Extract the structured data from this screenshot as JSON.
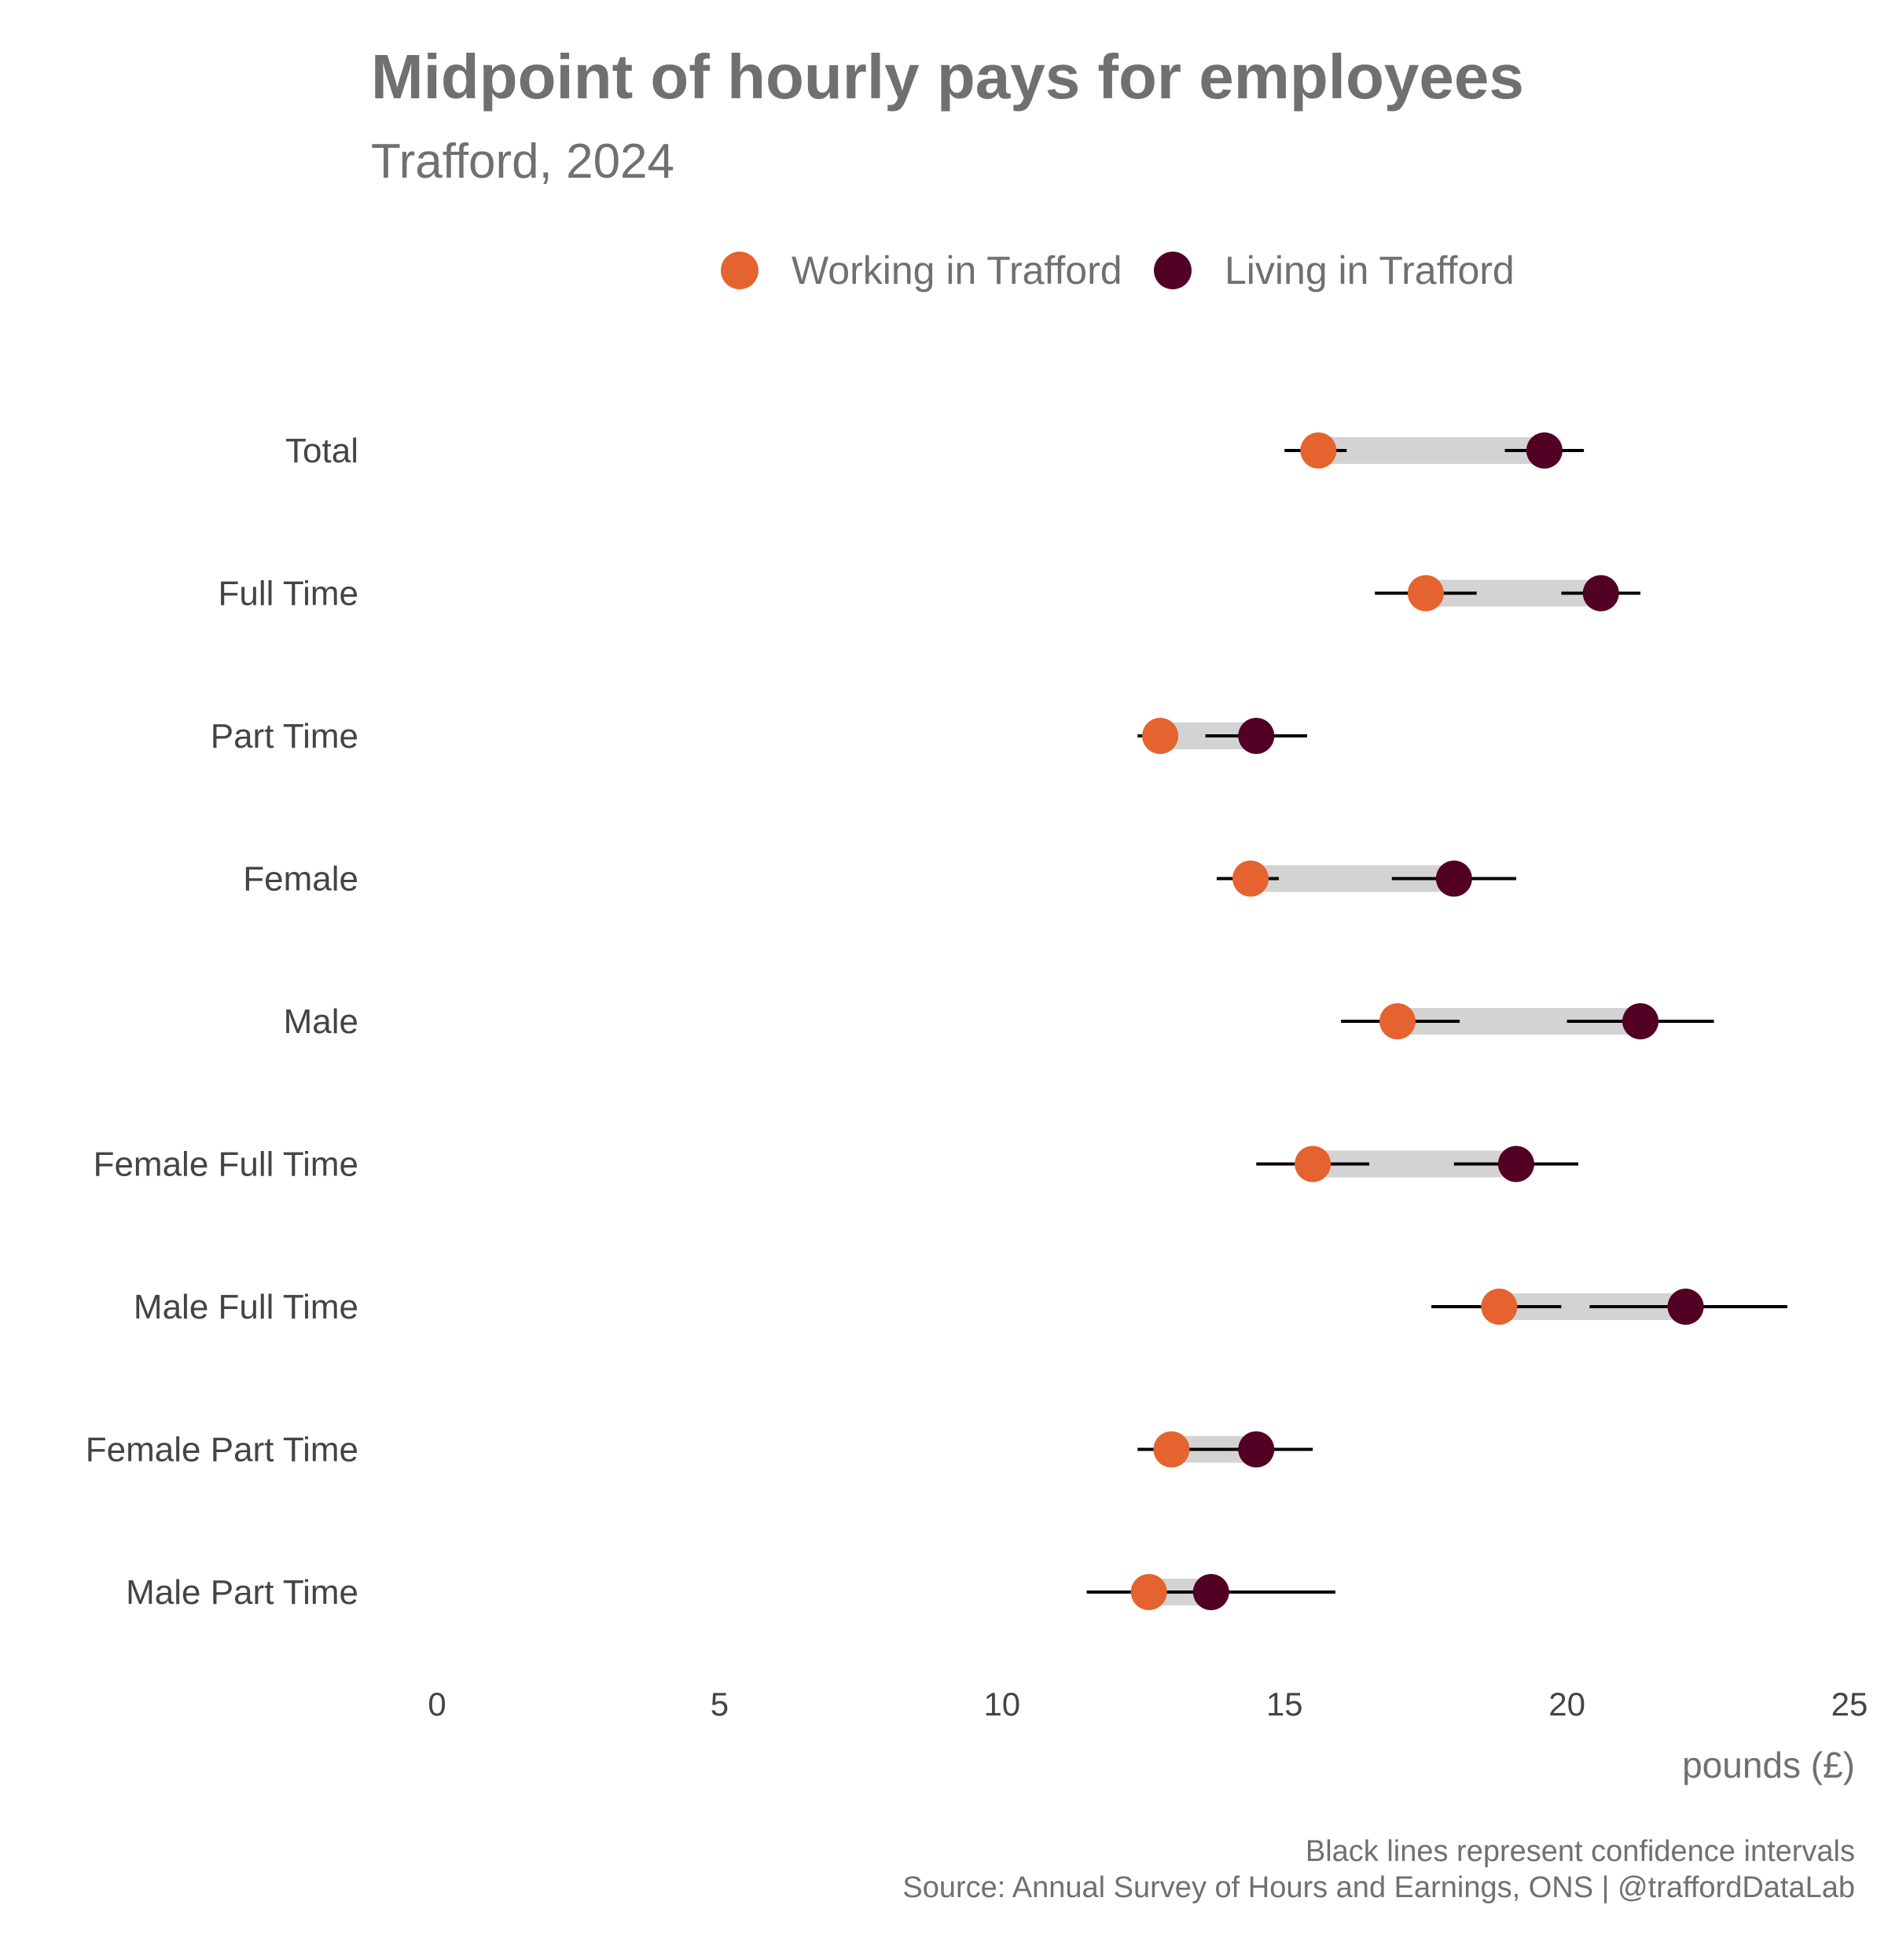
{
  "chart_data": {
    "type": "dumbbell",
    "title": "Midpoint of hourly pays for employees",
    "subtitle": "Trafford, 2024",
    "xlabel": "pounds (£)",
    "xlim": [
      0,
      25
    ],
    "x_ticks": [
      "0",
      "5",
      "10",
      "15",
      "20",
      "25"
    ],
    "legend_position": "top",
    "grid": false,
    "categories": [
      "Total",
      "Full Time",
      "Part Time",
      "Female",
      "Male",
      "Female Full Time",
      "Male Full Time",
      "Female Part Time",
      "Male Part Time"
    ],
    "series": [
      {
        "name": "Working in Trafford",
        "color": "#E4632E",
        "values": [
          15.6,
          17.5,
          12.8,
          14.4,
          17.0,
          15.5,
          18.8,
          13.0,
          12.6
        ],
        "ci_low": [
          15.0,
          16.6,
          12.4,
          13.8,
          16.0,
          14.5,
          17.6,
          12.4,
          11.5
        ],
        "ci_high": [
          16.1,
          18.4,
          13.1,
          14.9,
          18.1,
          16.5,
          19.9,
          13.5,
          13.4
        ]
      },
      {
        "name": "Living in Trafford",
        "color": "#520024",
        "values": [
          19.6,
          20.6,
          14.5,
          18.0,
          21.3,
          19.1,
          22.1,
          14.5,
          13.7
        ],
        "ci_low": [
          18.9,
          19.9,
          13.6,
          16.9,
          20.0,
          18.0,
          20.4,
          13.4,
          12.0
        ],
        "ci_high": [
          20.3,
          21.3,
          15.4,
          19.1,
          22.6,
          20.2,
          23.9,
          15.5,
          15.9
        ]
      }
    ],
    "range_bar_color": "#D3D3D3",
    "ci_line_color": "#000000",
    "caption": [
      "Black lines represent confidence intervals",
      "Source: Annual Survey of Hours and Earnings, ONS | @traffordDataLab"
    ]
  }
}
